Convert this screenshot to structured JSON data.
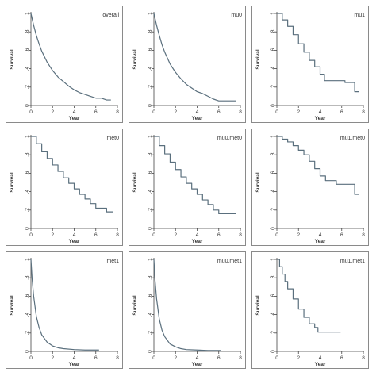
{
  "chart_data": [
    {
      "type": "line",
      "title": "overall",
      "xlabel": "Year",
      "ylabel": "Survival",
      "xlim": [
        0,
        8
      ],
      "ylim": [
        0,
        1
      ],
      "xticks": [
        0,
        2,
        4,
        6,
        8
      ],
      "yticks": [
        0,
        0.2,
        0.4,
        0.6,
        0.8,
        1
      ],
      "ytick_labels": [
        "0",
        ".2",
        ".4",
        ".6",
        ".8",
        "1"
      ],
      "series": [
        {
          "x": [
            0,
            0.25,
            0.5,
            0.75,
            1,
            1.5,
            2,
            2.5,
            3,
            3.5,
            4,
            4.5,
            5,
            5.5,
            6,
            6.5,
            7,
            7.4
          ],
          "y": [
            1,
            0.87,
            0.76,
            0.67,
            0.59,
            0.47,
            0.38,
            0.31,
            0.26,
            0.21,
            0.17,
            0.14,
            0.12,
            0.1,
            0.08,
            0.08,
            0.06,
            0.06
          ],
          "step": false
        }
      ]
    },
    {
      "type": "line",
      "title": "mu0",
      "xlabel": "Year",
      "ylabel": "Survival",
      "xlim": [
        0,
        8
      ],
      "ylim": [
        0,
        1
      ],
      "xticks": [
        0,
        2,
        4,
        6,
        8
      ],
      "yticks": [
        0,
        0.2,
        0.4,
        0.6,
        0.8,
        1
      ],
      "ytick_labels": [
        "0",
        ".2",
        ".4",
        ".6",
        ".8",
        "1"
      ],
      "series": [
        {
          "x": [
            0,
            0.25,
            0.5,
            0.75,
            1,
            1.5,
            2,
            2.5,
            3,
            3.5,
            4,
            4.5,
            5,
            5.5,
            6,
            7,
            7.6
          ],
          "y": [
            1,
            0.87,
            0.76,
            0.66,
            0.58,
            0.45,
            0.36,
            0.29,
            0.23,
            0.19,
            0.15,
            0.13,
            0.1,
            0.07,
            0.05,
            0.05,
            0.05
          ],
          "step": false
        }
      ]
    },
    {
      "type": "line",
      "title": "mu1",
      "xlabel": "Year",
      "ylabel": "Survival",
      "xlim": [
        0,
        8
      ],
      "ylim": [
        0,
        1
      ],
      "xticks": [
        0,
        2,
        4,
        6,
        8
      ],
      "yticks": [
        0,
        0.2,
        0.4,
        0.6,
        0.8,
        1
      ],
      "ytick_labels": [
        "0",
        ".2",
        ".4",
        ".6",
        ".8",
        "1"
      ],
      "series": [
        {
          "x": [
            0,
            0.5,
            1,
            1.5,
            2,
            2.5,
            3,
            3.5,
            4,
            4.4,
            5,
            6.3,
            7.2,
            7.6
          ],
          "y": [
            1,
            0.93,
            0.86,
            0.77,
            0.67,
            0.58,
            0.49,
            0.42,
            0.34,
            0.27,
            0.27,
            0.25,
            0.15,
            0.15
          ],
          "step": true
        }
      ]
    },
    {
      "type": "line",
      "title": "met0",
      "xlabel": "Year",
      "ylabel": "Survival",
      "xlim": [
        0,
        8
      ],
      "ylim": [
        0,
        1
      ],
      "xticks": [
        0,
        2,
        4,
        6,
        8
      ],
      "yticks": [
        0,
        0.2,
        0.4,
        0.6,
        0.8,
        1
      ],
      "ytick_labels": [
        "0",
        ".2",
        ".4",
        ".6",
        ".8",
        "1"
      ],
      "series": [
        {
          "x": [
            0,
            0.5,
            1,
            1.5,
            2,
            2.5,
            3,
            3.5,
            4,
            4.5,
            5,
            5.5,
            6,
            6.5,
            7,
            7.6
          ],
          "y": [
            1,
            0.92,
            0.84,
            0.76,
            0.69,
            0.62,
            0.55,
            0.49,
            0.43,
            0.37,
            0.32,
            0.27,
            0.22,
            0.22,
            0.18,
            0.18
          ],
          "step": true
        }
      ]
    },
    {
      "type": "line",
      "title": "mu0,met0",
      "xlabel": "Year",
      "ylabel": "Survival",
      "xlim": [
        0,
        8
      ],
      "ylim": [
        0,
        1
      ],
      "xticks": [
        0,
        2,
        4,
        6,
        8
      ],
      "yticks": [
        0,
        0.2,
        0.4,
        0.6,
        0.8,
        1
      ],
      "ytick_labels": [
        "0",
        ".2",
        ".4",
        ".6",
        ".8",
        "1"
      ],
      "series": [
        {
          "x": [
            0,
            0.5,
            1,
            1.5,
            2,
            2.5,
            3,
            3.5,
            4,
            4.5,
            5,
            5.5,
            6,
            7,
            7.6
          ],
          "y": [
            1,
            0.9,
            0.81,
            0.72,
            0.64,
            0.56,
            0.49,
            0.43,
            0.37,
            0.31,
            0.26,
            0.2,
            0.16,
            0.16,
            0.16
          ],
          "step": true
        }
      ]
    },
    {
      "type": "line",
      "title": "mu1,met0",
      "xlabel": "Year",
      "ylabel": "Survival",
      "xlim": [
        0,
        8
      ],
      "ylim": [
        0,
        1
      ],
      "xticks": [
        0,
        2,
        4,
        6,
        8
      ],
      "yticks": [
        0,
        0.2,
        0.4,
        0.6,
        0.8,
        1
      ],
      "ytick_labels": [
        "0",
        ".2",
        ".4",
        ".6",
        ".8",
        "1"
      ],
      "series": [
        {
          "x": [
            0,
            0.5,
            1,
            1.5,
            2,
            2.5,
            3,
            3.5,
            4,
            4.5,
            5,
            5.5,
            6,
            7.2,
            7.6
          ],
          "y": [
            1,
            0.97,
            0.94,
            0.9,
            0.85,
            0.8,
            0.73,
            0.65,
            0.57,
            0.52,
            0.52,
            0.48,
            0.48,
            0.37,
            0.37
          ],
          "step": true
        }
      ]
    },
    {
      "type": "line",
      "title": "met1",
      "xlabel": "Year",
      "ylabel": "Survival",
      "xlim": [
        0,
        8
      ],
      "ylim": [
        0,
        1
      ],
      "xticks": [
        0,
        2,
        4,
        6,
        8
      ],
      "yticks": [
        0,
        0.2,
        0.4,
        0.6,
        0.8,
        1
      ],
      "ytick_labels": [
        "0",
        ".2",
        ".4",
        ".6",
        ".8",
        "1"
      ],
      "series": [
        {
          "x": [
            0,
            0.1,
            0.25,
            0.5,
            0.75,
            1,
            1.5,
            2,
            2.5,
            3,
            4,
            5,
            6,
            6.3
          ],
          "y": [
            1,
            0.8,
            0.6,
            0.38,
            0.26,
            0.18,
            0.1,
            0.06,
            0.04,
            0.03,
            0.02,
            0.015,
            0.015,
            0.015
          ],
          "step": false
        }
      ]
    },
    {
      "type": "line",
      "title": "mu0,met1",
      "xlabel": "Year",
      "ylabel": "Survival",
      "xlim": [
        0,
        8
      ],
      "ylim": [
        0,
        1
      ],
      "xticks": [
        0,
        2,
        4,
        6,
        8
      ],
      "yticks": [
        0,
        0.2,
        0.4,
        0.6,
        0.8,
        1
      ],
      "ytick_labels": [
        "0",
        ".2",
        ".4",
        ".6",
        ".8",
        "1"
      ],
      "series": [
        {
          "x": [
            0,
            0.1,
            0.25,
            0.5,
            0.75,
            1,
            1.5,
            2,
            2.5,
            3,
            4,
            5,
            6,
            6.2
          ],
          "y": [
            1,
            0.78,
            0.57,
            0.35,
            0.23,
            0.16,
            0.08,
            0.05,
            0.03,
            0.02,
            0.015,
            0.01,
            0.01,
            0.01
          ],
          "step": false
        }
      ]
    },
    {
      "type": "line",
      "title": "mu1,met1",
      "xlabel": "Year",
      "ylabel": "Survival",
      "xlim": [
        0,
        8
      ],
      "ylim": [
        0,
        1
      ],
      "xticks": [
        0,
        2,
        4,
        6,
        8
      ],
      "yticks": [
        0,
        0.2,
        0.4,
        0.6,
        0.8,
        1
      ],
      "ytick_labels": [
        "0",
        ".2",
        ".4",
        ".6",
        ".8",
        "1"
      ],
      "series": [
        {
          "x": [
            0,
            0.25,
            0.5,
            0.75,
            1,
            1.5,
            2,
            2.5,
            3,
            3.5,
            3.8,
            4.5,
            5.9
          ],
          "y": [
            1,
            0.92,
            0.84,
            0.76,
            0.68,
            0.57,
            0.46,
            0.37,
            0.3,
            0.26,
            0.21,
            0.21,
            0.21
          ],
          "step": true
        }
      ]
    }
  ],
  "style": {
    "curve_color": "#5a6f7d",
    "axis_color": "#444444",
    "panel_border": "#8a8a8a",
    "background": "#ffffff"
  }
}
